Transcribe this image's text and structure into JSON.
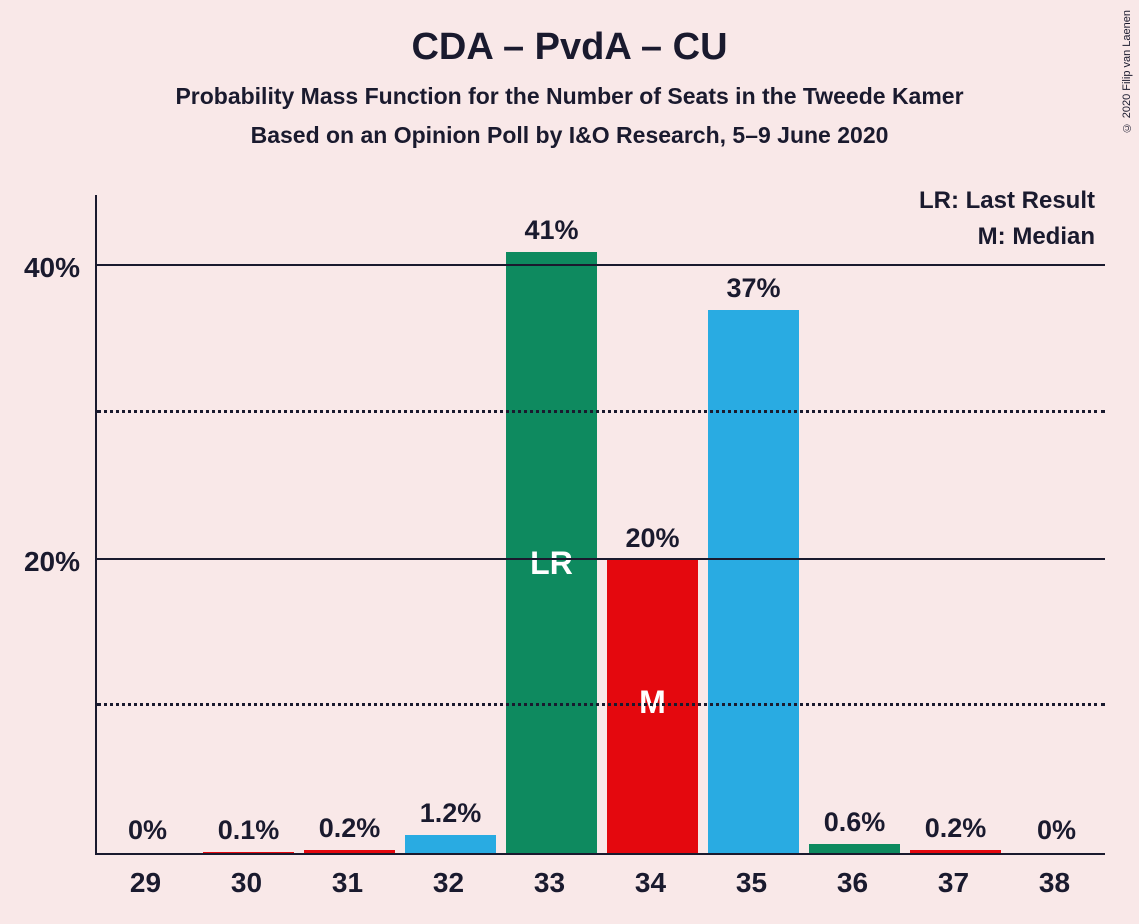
{
  "title": "CDA – PvdA – CU",
  "subtitle1": "Probability Mass Function for the Number of Seats in the Tweede Kamer",
  "subtitle2": "Based on an Opinion Poll by I&O Research, 5–9 June 2020",
  "copyright": "© 2020 Filip van Laenen",
  "legend": {
    "lr": "LR: Last Result",
    "m": "M: Median"
  },
  "chart": {
    "type": "bar",
    "ylim": [
      0,
      45
    ],
    "y_ticks_major": [
      20,
      40
    ],
    "y_ticks_minor": [
      10,
      30
    ],
    "y_tick_labels": {
      "20": "20%",
      "40": "40%"
    },
    "background_color": "#f9e8e8",
    "text_color": "#1a1a2e",
    "axis_color": "#1a1a2e",
    "grid_solid_color": "#1a1a2e",
    "grid_dot_color": "#1a1a2e",
    "bar_width": 0.9,
    "title_fontsize": 38,
    "subtitle_fontsize": 23,
    "axis_label_fontsize": 28,
    "value_label_fontsize": 27,
    "inner_label_fontsize": 32,
    "categories": [
      "29",
      "30",
      "31",
      "32",
      "33",
      "34",
      "35",
      "36",
      "37",
      "38"
    ],
    "values": [
      0,
      0.1,
      0.2,
      1.2,
      41,
      20,
      37,
      0.6,
      0.2,
      0
    ],
    "value_labels": [
      "0%",
      "0.1%",
      "0.2%",
      "1.2%",
      "41%",
      "20%",
      "37%",
      "0.6%",
      "0.2%",
      "0%"
    ],
    "bar_colors": [
      "#e4080e",
      "#e4080e",
      "#e4080e",
      "#29abe2",
      "#0e8a5f",
      "#e4080e",
      "#29abe2",
      "#0e8a5f",
      "#e4080e",
      "#e4080e"
    ],
    "inner_labels": {
      "4": "LR",
      "5": "M"
    },
    "colors": {
      "green": "#0e8a5f",
      "red": "#e4080e",
      "blue": "#29abe2"
    }
  }
}
